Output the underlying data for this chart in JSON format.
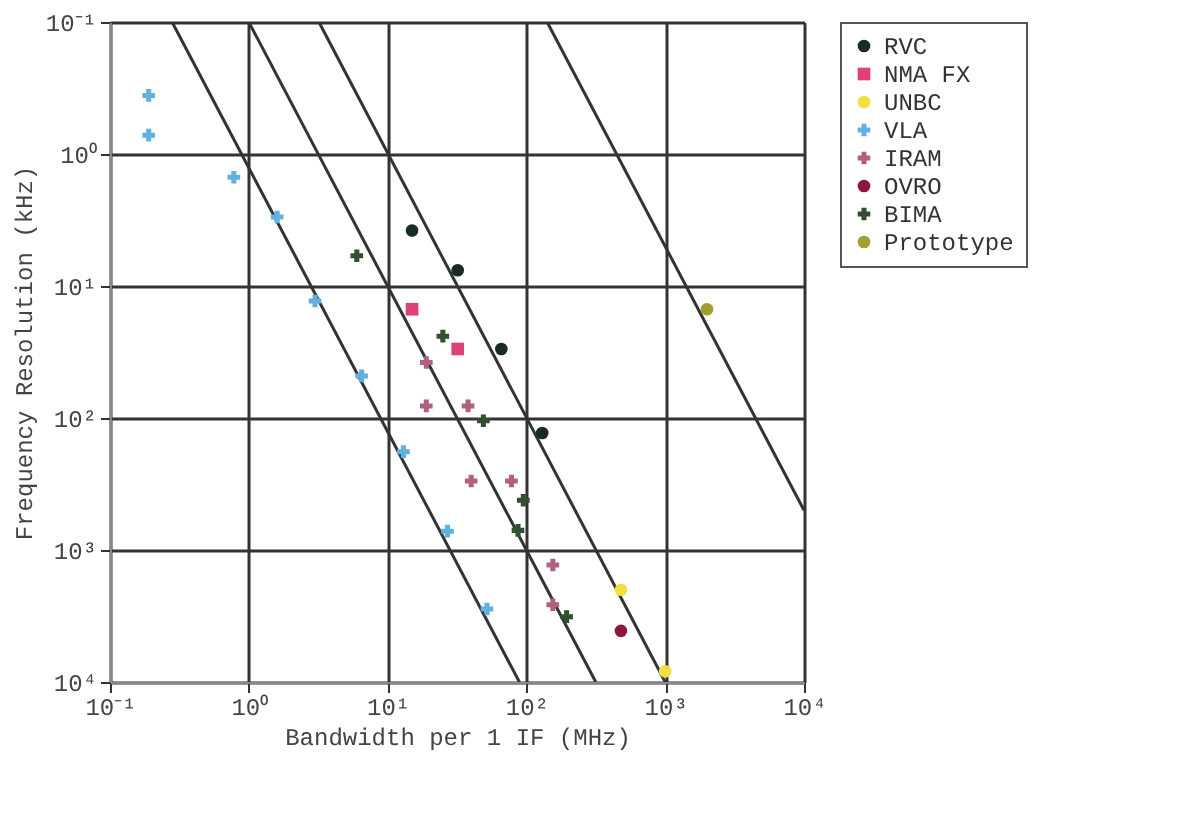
{
  "chart_data": {
    "type": "scatter",
    "xlabel": "Bandwidth per 1 IF (MHz)",
    "ylabel": "Frequency Resolution (kHz)",
    "log": "xy",
    "xlim": [
      0.1,
      10000
    ],
    "ylim": [
      10000,
      0.1
    ],
    "xticks": [
      {
        "value": 0.1,
        "label": "10⁻¹"
      },
      {
        "value": 1,
        "label": "10⁰"
      },
      {
        "value": 10,
        "label": "10¹"
      },
      {
        "value": 100,
        "label": "10²"
      },
      {
        "value": 1000,
        "label": "10³"
      },
      {
        "value": 10000,
        "label": "10⁴"
      }
    ],
    "yticks": [
      {
        "value": 0.1,
        "label": "10⁻¹"
      },
      {
        "value": 1,
        "label": "10⁰"
      },
      {
        "value": 10,
        "label": "10¹"
      },
      {
        "value": 100,
        "label": "10²"
      },
      {
        "value": 1000,
        "label": "10³"
      },
      {
        "value": 10000,
        "label": "10⁴"
      }
    ],
    "grid": true,
    "legend": "right",
    "series": [
      {
        "name": "RVC",
        "color": "#1a2a24",
        "marker": "circle",
        "x": [
          15,
          32,
          66,
          130
        ],
        "values": [
          3.8,
          7.6,
          30,
          130
        ]
      },
      {
        "name": "NMA FX",
        "color": "#e0407a",
        "marker": "square",
        "x": [
          15,
          32
        ],
        "values": [
          15,
          30
        ]
      },
      {
        "name": "UNBC",
        "color": "#f0e040",
        "marker": "circle",
        "x": [
          480,
          1000
        ],
        "values": [
          2000,
          8300
        ]
      },
      {
        "name": "VLA",
        "color": "#60b0e0",
        "marker": "cross",
        "x": [
          0.19,
          0.19,
          0.78,
          1.6,
          3.0,
          6.5,
          13,
          27,
          52
        ],
        "values": [
          0.36,
          0.72,
          1.5,
          3.0,
          13,
          48,
          180,
          720,
          2800
        ]
      },
      {
        "name": "IRAM",
        "color": "#b06080",
        "marker": "cross",
        "x": [
          19,
          19,
          38,
          40,
          78,
          155,
          155
        ],
        "values": [
          38,
          81,
          81,
          300,
          300,
          1300,
          2600
        ]
      },
      {
        "name": "OVRO",
        "color": "#8b1a3a",
        "marker": "circle",
        "x": [
          480
        ],
        "values": [
          4100
        ]
      },
      {
        "name": "BIMA",
        "color": "#305030",
        "marker": "cross",
        "x": [
          6.0,
          25,
          49,
          95,
          87,
          195
        ],
        "values": [
          5.9,
          24,
          105,
          420,
          710,
          3200
        ]
      },
      {
        "name": "Prototype",
        "color": "#a0a030",
        "marker": "circle",
        "x": [
          2000
        ],
        "values": [
          15
        ]
      },
      {
        "type": "line",
        "color": "#333333",
        "x": [
          0.28,
          89
        ],
        "values": [
          0.1,
          10000
        ]
      },
      {
        "type": "line",
        "color": "#333333",
        "x": [
          1,
          316
        ],
        "values": [
          0.1,
          10000
        ]
      },
      {
        "type": "line",
        "color": "#333333",
        "x": [
          3.2,
          1000
        ],
        "values": [
          0.1,
          10000
        ]
      },
      {
        "type": "line",
        "color": "#333333",
        "x": [
          141,
          10000
        ],
        "values": [
          0.1,
          500
        ]
      }
    ]
  }
}
